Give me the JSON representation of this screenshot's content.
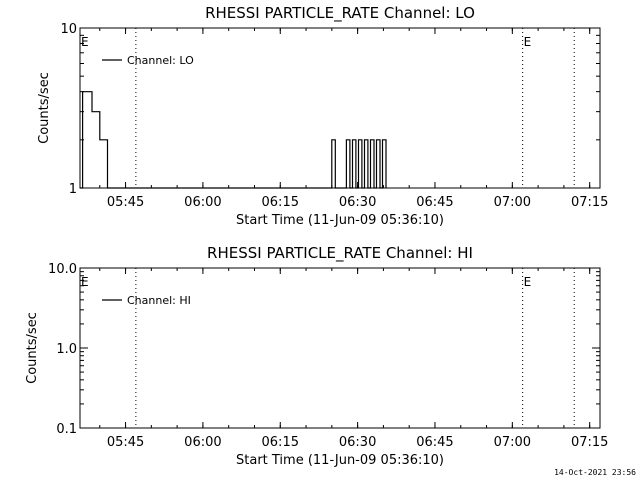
{
  "stamp": "14-Oct-2021 23:56",
  "chart_data": [
    {
      "type": "line",
      "title": "RHESSI PARTICLE_RATE Channel: LO",
      "xlabel": "Start Time (11-Jun-09 05:36:10)",
      "ylabel": "Counts/sec",
      "yscale": "log",
      "xlim": [
        "05:36:10",
        "07:17:00"
      ],
      "ylim": [
        1,
        10
      ],
      "x_ticks": [
        "05:45",
        "06:00",
        "06:15",
        "06:30",
        "06:45",
        "07:00",
        "07:15"
      ],
      "y_ticks": [
        "1",
        "10"
      ],
      "legend": "top-left",
      "vlines": [
        "05:47",
        "07:02",
        "07:12"
      ],
      "markers": [
        {
          "x": "05:36:10",
          "label": "E"
        },
        {
          "x": "07:02",
          "label": "E"
        }
      ],
      "series": [
        {
          "name": "Channel: LO",
          "x": [
            "05:36:10",
            "05:36:40",
            "05:37",
            "05:37:30",
            "05:38",
            "05:38:30",
            "05:39",
            "05:39:30",
            "05:40",
            "05:40:30",
            "05:41",
            "05:41:30",
            "05:42",
            "06:24:30",
            "06:25",
            "06:25:20",
            "06:25:40",
            "06:26",
            "06:27:30",
            "06:27:50",
            "06:28:10",
            "06:28:30",
            "06:28:40",
            "06:29",
            "06:29:20",
            "06:29:40",
            "06:29:50",
            "06:30:10",
            "06:30:30",
            "06:30:50",
            "06:31",
            "06:31:20",
            "06:31:40",
            "06:32",
            "06:32:10",
            "06:32:30",
            "06:32:50",
            "06:33:10",
            "06:33:20",
            "06:33:40",
            "06:34",
            "06:34:20",
            "06:34:30",
            "06:34:50",
            "06:35:10",
            "06:35:30"
          ],
          "y": [
            1,
            4,
            4,
            4,
            4,
            3,
            3,
            3,
            2,
            2,
            2,
            1,
            1,
            1,
            2,
            2,
            1,
            1,
            1,
            2,
            2,
            1,
            1,
            2,
            2,
            1,
            1,
            2,
            2,
            1,
            1,
            2,
            2,
            1,
            1,
            2,
            2,
            1,
            1,
            2,
            2,
            1,
            1,
            2,
            2,
            1
          ]
        }
      ]
    },
    {
      "type": "line",
      "title": "RHESSI PARTICLE_RATE Channel: HI",
      "xlabel": "Start Time (11-Jun-09 05:36:10)",
      "ylabel": "Counts/sec",
      "yscale": "log",
      "xlim": [
        "05:36:10",
        "07:17:00"
      ],
      "ylim": [
        0.1,
        10
      ],
      "x_ticks": [
        "05:45",
        "06:00",
        "06:15",
        "06:30",
        "06:45",
        "07:00",
        "07:15"
      ],
      "y_ticks": [
        "0.1",
        "1.0",
        "10.0"
      ],
      "legend": "top-left",
      "vlines": [
        "05:47",
        "07:02",
        "07:12"
      ],
      "markers": [
        {
          "x": "05:36:10",
          "label": "E"
        },
        {
          "x": "07:02",
          "label": "E"
        }
      ],
      "series": [
        {
          "name": "Channel: HI",
          "x": [],
          "y": []
        }
      ]
    }
  ]
}
